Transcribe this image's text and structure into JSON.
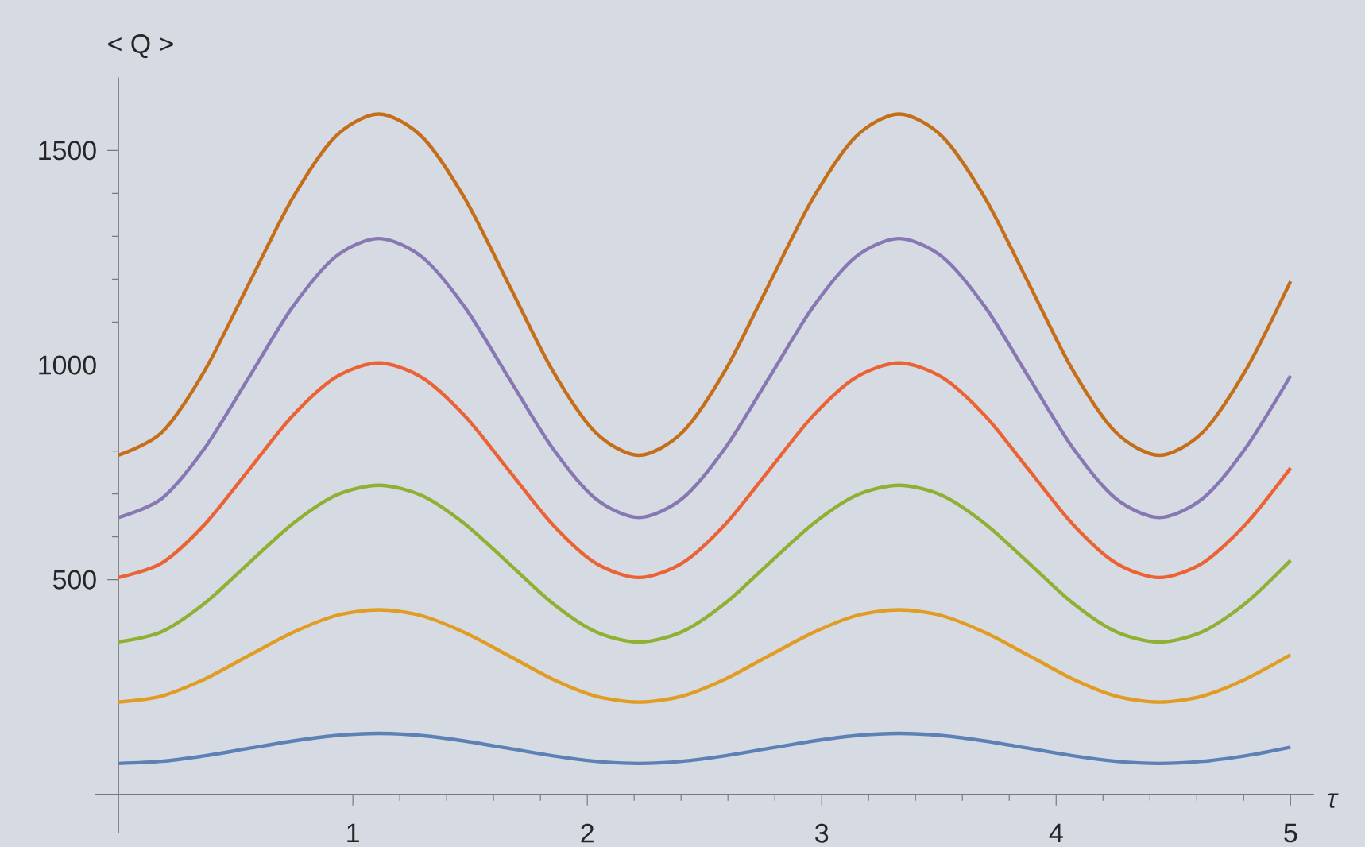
{
  "chart_data": {
    "type": "line",
    "ylabel": "< Q >",
    "xlabel": "*τ*",
    "xlim": [
      -0.1,
      5.1
    ],
    "ylim": [
      -90,
      1670
    ],
    "xticks": [
      1,
      2,
      3,
      4,
      5
    ],
    "yticks": [
      500,
      1000,
      1500
    ],
    "grid": false,
    "marker": "none",
    "line_style": "solid",
    "x": [
      0,
      0.185,
      0.37,
      0.555,
      0.74,
      0.925,
      1.11,
      1.295,
      1.48,
      1.665,
      1.85,
      2.035,
      2.22,
      2.405,
      2.59,
      2.775,
      2.96,
      3.145,
      3.33,
      3.515,
      3.7,
      3.885,
      4.07,
      4.255,
      4.44,
      4.625,
      4.81,
      5
    ],
    "series": [
      {
        "color": "#5e81b5",
        "values": [
          72,
          77,
          90,
          107,
          124,
          137,
          142,
          137,
          124,
          107,
          90,
          77,
          72,
          77,
          90,
          107,
          124,
          137,
          142,
          137,
          124,
          107,
          90,
          77,
          72,
          77,
          90,
          110
        ]
      },
      {
        "color": "#e19c24",
        "values": [
          215,
          229,
          269,
          323,
          376,
          416,
          430,
          416,
          376,
          323,
          269,
          229,
          215,
          229,
          269,
          323,
          376,
          416,
          430,
          416,
          376,
          323,
          269,
          229,
          215,
          229,
          269,
          325
        ]
      },
      {
        "color": "#8fb032",
        "values": [
          355,
          379,
          446,
          538,
          629,
          696,
          720,
          696,
          629,
          538,
          446,
          379,
          355,
          379,
          446,
          538,
          629,
          696,
          720,
          696,
          629,
          538,
          446,
          379,
          355,
          379,
          446,
          545
        ]
      },
      {
        "color": "#eb6235",
        "values": [
          505,
          539,
          630,
          755,
          880,
          971,
          1005,
          971,
          880,
          755,
          630,
          539,
          505,
          539,
          630,
          755,
          880,
          971,
          1005,
          971,
          880,
          755,
          630,
          539,
          505,
          539,
          630,
          760
        ]
      },
      {
        "color": "#8778b3",
        "values": [
          645,
          689,
          808,
          970,
          1133,
          1252,
          1295,
          1252,
          1133,
          970,
          808,
          689,
          645,
          689,
          808,
          970,
          1133,
          1252,
          1295,
          1252,
          1133,
          970,
          808,
          689,
          645,
          689,
          808,
          975
        ]
      },
      {
        "color": "#c56e1a",
        "values": [
          790,
          843,
          989,
          1188,
          1386,
          1532,
          1585,
          1532,
          1386,
          1188,
          989,
          843,
          790,
          843,
          989,
          1188,
          1386,
          1532,
          1585,
          1532,
          1386,
          1188,
          989,
          843,
          790,
          843,
          989,
          1195
        ]
      }
    ]
  }
}
